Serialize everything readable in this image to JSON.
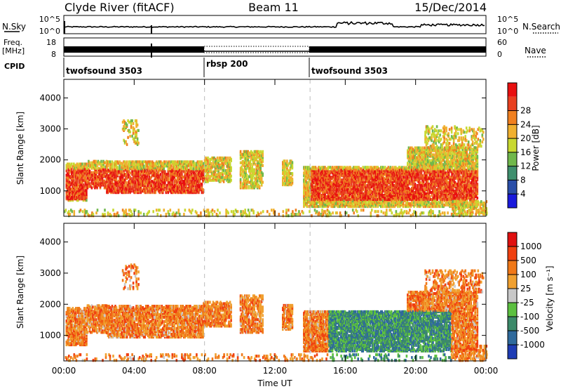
{
  "header": {
    "station": "Clyde River (fitACF)",
    "beam": "Beam 11",
    "date": "15/Dec/2014"
  },
  "left_labels": {
    "nsky": "N.Sky",
    "freq_line1": "Freq.",
    "freq_line2": "[MHz]",
    "cpid": "CPID"
  },
  "right_labels": {
    "nsearch": "N.Search",
    "nave": "Nave"
  },
  "noise_panel": {
    "left_ticks": [
      "10^5",
      "10^0"
    ],
    "right_ticks": [
      "10^5",
      "10^0"
    ]
  },
  "freq_panel": {
    "left_ticks": [
      "18",
      "8"
    ],
    "right_ticks": [
      "60",
      "0"
    ]
  },
  "cpid_segments": [
    {
      "label": "twofsound 3503",
      "start_hour": 0,
      "end_hour": 8
    },
    {
      "label": "rbsp 200",
      "start_hour": 8,
      "end_hour": 14
    },
    {
      "label": "twofsound 3503",
      "start_hour": 14,
      "end_hour": 24
    }
  ],
  "chart_data": [
    {
      "type": "heatmap",
      "panel": "power",
      "ylabel": "Slant Range [km]",
      "ylim": [
        180,
        4600
      ],
      "yticks": [
        1000,
        2000,
        3000,
        4000
      ],
      "colorbar_label": "Power [dB]",
      "colorbar_ticks": [
        "4",
        "8",
        "12",
        "16",
        "20",
        "24",
        "28"
      ],
      "colorbar_colors": [
        "#1a1adc",
        "#2a4ea8",
        "#3f8f6e",
        "#70b84c",
        "#c8d830",
        "#f0b030",
        "#f08020",
        "#e84020",
        "#e81010"
      ]
    },
    {
      "type": "heatmap",
      "panel": "velocity",
      "ylabel": "Slant Range [km]",
      "ylim": [
        180,
        4600
      ],
      "yticks": [
        1000,
        2000,
        3000,
        4000
      ],
      "colorbar_label": "Velocity [m s⁻¹]",
      "colorbar_ticks": [
        "1000",
        "500",
        "100",
        "25",
        "-25",
        "-100",
        "-500",
        "-1000"
      ],
      "colorbar_colors": [
        "#1e3cb4",
        "#2f6a9c",
        "#3c8a6a",
        "#5cc040",
        "#c8c8c8",
        "#f0a030",
        "#f07818",
        "#f04010",
        "#e01010"
      ]
    }
  ],
  "time_axis": {
    "xlabel": "Time UT",
    "xlim_hours": [
      0,
      24
    ],
    "ticks": [
      "00:00",
      "04:00",
      "08:00",
      "12:00",
      "16:00",
      "20:00",
      "00:00"
    ]
  }
}
